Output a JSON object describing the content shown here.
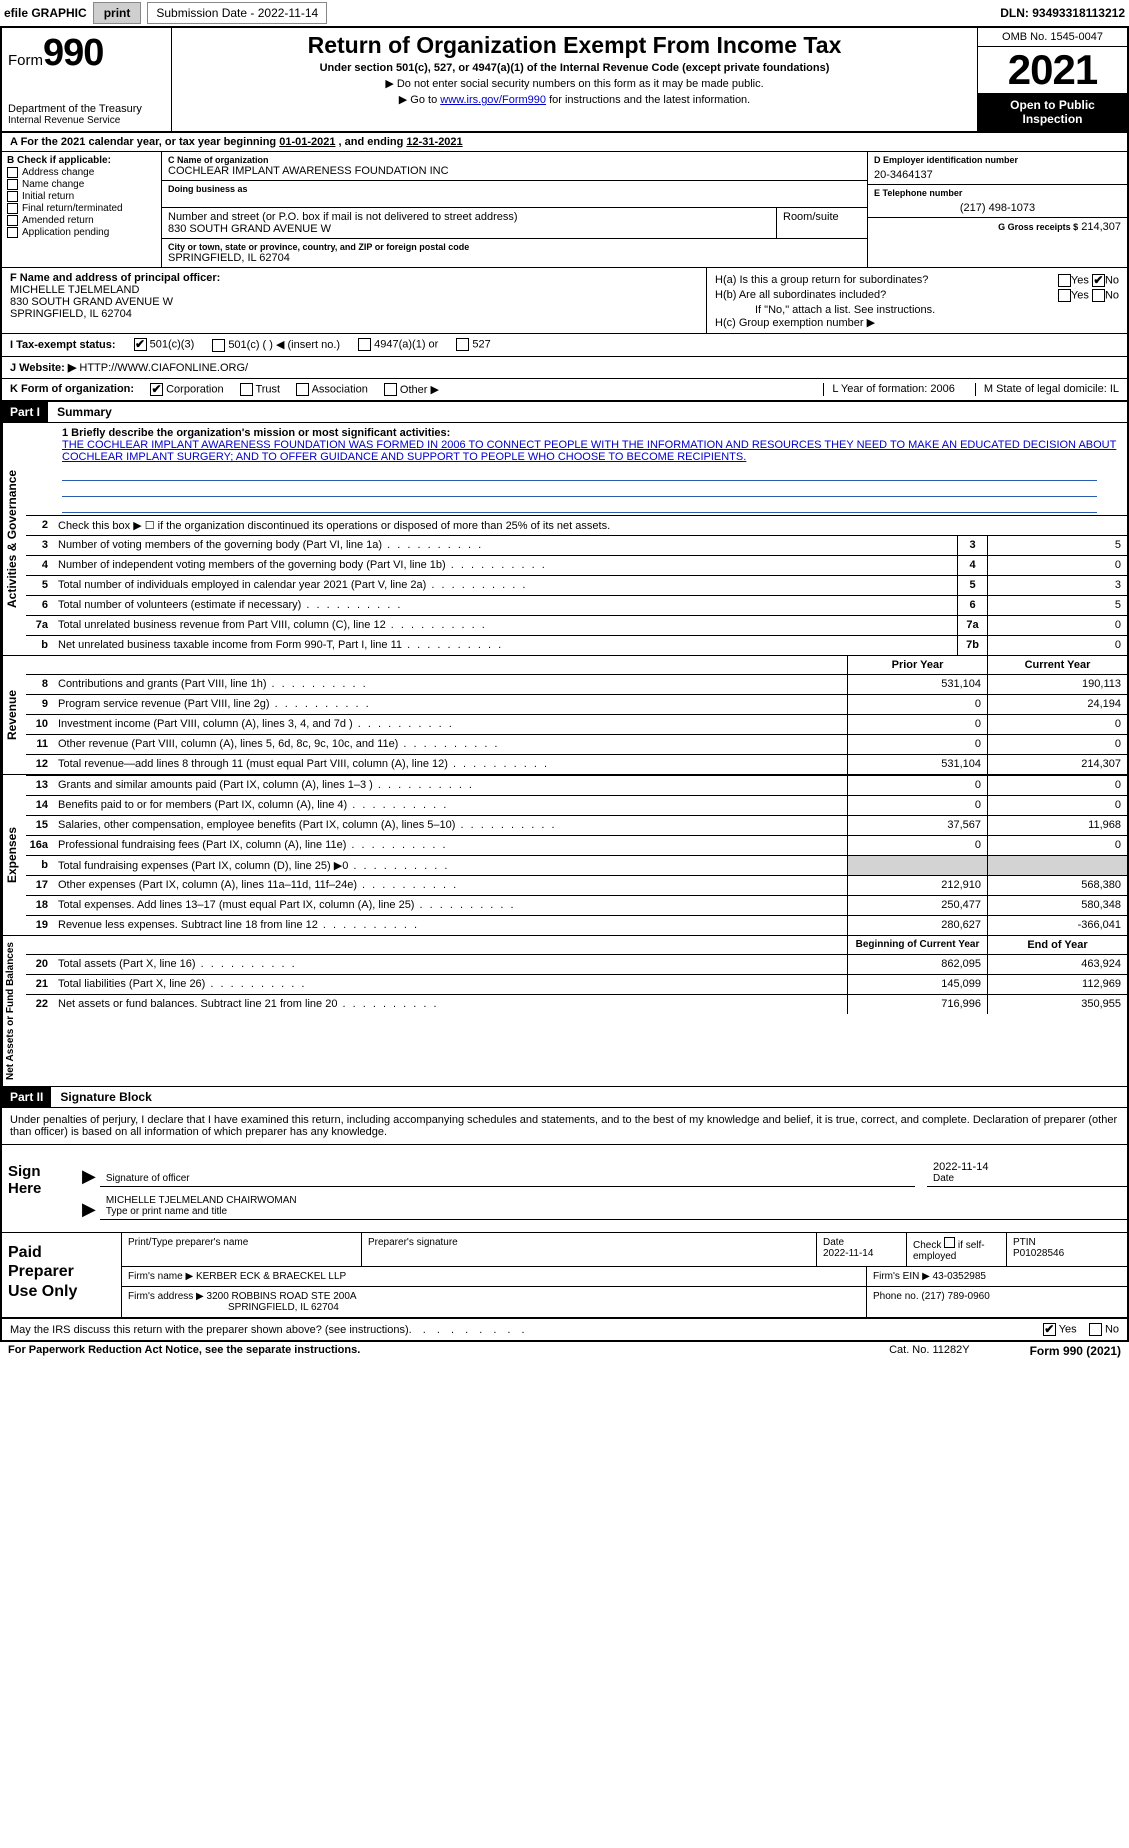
{
  "topbar": {
    "efile": "efile GRAPHIC",
    "print": "print",
    "submission": "Submission Date - 2022-11-14",
    "dln": "DLN: 93493318113212"
  },
  "header": {
    "form_prefix": "Form",
    "form_number": "990",
    "dept1": "Department of the Treasury",
    "dept2": "Internal Revenue Service",
    "title": "Return of Organization Exempt From Income Tax",
    "subtitle": "Under section 501(c), 527, or 4947(a)(1) of the Internal Revenue Code (except private foundations)",
    "note1": "▶ Do not enter social security numbers on this form as it may be made public.",
    "note2_pre": "▶ Go to ",
    "note2_link": "www.irs.gov/Form990",
    "note2_post": " for instructions and the latest information.",
    "omb": "OMB No. 1545-0047",
    "year": "2021",
    "open1": "Open to Public",
    "open2": "Inspection"
  },
  "period": {
    "label_a": "A For the 2021 calendar year, or tax year beginning ",
    "begin": "01-01-2021",
    "mid": " , and ending ",
    "end": "12-31-2021"
  },
  "B": {
    "label": "B Check if applicable:",
    "opts": [
      "Address change",
      "Name change",
      "Initial return",
      "Final return/terminated",
      "Amended return",
      "Application pending"
    ]
  },
  "C": {
    "name_label": "C Name of organization",
    "name": "COCHLEAR IMPLANT AWARENESS FOUNDATION INC",
    "dba_label": "Doing business as",
    "street_label": "Number and street (or P.O. box if mail is not delivered to street address)",
    "room_label": "Room/suite",
    "street": "830 SOUTH GRAND AVENUE W",
    "city_label": "City or town, state or province, country, and ZIP or foreign postal code",
    "city": "SPRINGFIELD, IL  62704"
  },
  "D": {
    "label": "D Employer identification number",
    "value": "20-3464137"
  },
  "E": {
    "label": "E Telephone number",
    "value": "(217) 498-1073"
  },
  "G": {
    "label": "G Gross receipts $",
    "value": "214,307"
  },
  "F": {
    "label": "F Name and address of principal officer:",
    "name": "MICHELLE TJELMELAND",
    "street": "830 SOUTH GRAND AVENUE W",
    "city": "SPRINGFIELD, IL  62704"
  },
  "H": {
    "a": "H(a)  Is this a group return for subordinates?",
    "b": "H(b)  Are all subordinates included?",
    "b_note": "If \"No,\" attach a list. See instructions.",
    "c": "H(c)  Group exemption number ▶",
    "yes": "Yes",
    "no": "No"
  },
  "I": {
    "label": "I   Tax-exempt status:",
    "o1": "501(c)(3)",
    "o2": "501(c) (   ) ◀ (insert no.)",
    "o3": "4947(a)(1) or",
    "o4": "527"
  },
  "J": {
    "label": "J   Website: ▶",
    "value": "HTTP://WWW.CIAFONLINE.ORG/"
  },
  "K": {
    "label": "K Form of organization:",
    "o1": "Corporation",
    "o2": "Trust",
    "o3": "Association",
    "o4": "Other ▶",
    "L": "L Year of formation: 2006",
    "M": "M State of legal domicile: IL"
  },
  "partI": {
    "tag": "Part I",
    "title": "Summary"
  },
  "mission": {
    "q": "1  Briefly describe the organization's mission or most significant activities:",
    "text": "THE COCHLEAR IMPLANT AWARENESS FOUNDATION WAS FORMED IN 2006 TO CONNECT PEOPLE WITH THE INFORMATION AND RESOURCES THEY NEED TO MAKE AN EDUCATED DECISION ABOUT COCHLEAR IMPLANT SURGERY; AND TO OFFER GUIDANCE AND SUPPORT TO PEOPLE WHO CHOOSE TO BECOME RECIPIENTS."
  },
  "gov": {
    "r2": "Check this box ▶ ☐  if the organization discontinued its operations or disposed of more than 25% of its net assets.",
    "rows": [
      {
        "n": "3",
        "l": "Number of voting members of the governing body (Part VI, line 1a)",
        "box": "3",
        "v": "5"
      },
      {
        "n": "4",
        "l": "Number of independent voting members of the governing body (Part VI, line 1b)",
        "box": "4",
        "v": "0"
      },
      {
        "n": "5",
        "l": "Total number of individuals employed in calendar year 2021 (Part V, line 2a)",
        "box": "5",
        "v": "3"
      },
      {
        "n": "6",
        "l": "Total number of volunteers (estimate if necessary)",
        "box": "6",
        "v": "5"
      },
      {
        "n": "7a",
        "l": "Total unrelated business revenue from Part VIII, column (C), line 12",
        "box": "7a",
        "v": "0"
      },
      {
        "n": "b",
        "l": "Net unrelated business taxable income from Form 990-T, Part I, line 11",
        "box": "7b",
        "v": "0"
      }
    ]
  },
  "colhdr": {
    "prior": "Prior Year",
    "current": "Current Year"
  },
  "rev": [
    {
      "n": "8",
      "l": "Contributions and grants (Part VIII, line 1h)",
      "p": "531,104",
      "c": "190,113"
    },
    {
      "n": "9",
      "l": "Program service revenue (Part VIII, line 2g)",
      "p": "0",
      "c": "24,194"
    },
    {
      "n": "10",
      "l": "Investment income (Part VIII, column (A), lines 3, 4, and 7d )",
      "p": "0",
      "c": "0"
    },
    {
      "n": "11",
      "l": "Other revenue (Part VIII, column (A), lines 5, 6d, 8c, 9c, 10c, and 11e)",
      "p": "0",
      "c": "0"
    },
    {
      "n": "12",
      "l": "Total revenue—add lines 8 through 11 (must equal Part VIII, column (A), line 12)",
      "p": "531,104",
      "c": "214,307"
    }
  ],
  "exp": [
    {
      "n": "13",
      "l": "Grants and similar amounts paid (Part IX, column (A), lines 1–3 )",
      "p": "0",
      "c": "0"
    },
    {
      "n": "14",
      "l": "Benefits paid to or for members (Part IX, column (A), line 4)",
      "p": "0",
      "c": "0"
    },
    {
      "n": "15",
      "l": "Salaries, other compensation, employee benefits (Part IX, column (A), lines 5–10)",
      "p": "37,567",
      "c": "11,968"
    },
    {
      "n": "16a",
      "l": "Professional fundraising fees (Part IX, column (A), line 11e)",
      "p": "0",
      "c": "0"
    },
    {
      "n": "b",
      "l": "Total fundraising expenses (Part IX, column (D), line 25) ▶0",
      "p": "",
      "c": "",
      "shade": true
    },
    {
      "n": "17",
      "l": "Other expenses (Part IX, column (A), lines 11a–11d, 11f–24e)",
      "p": "212,910",
      "c": "568,380"
    },
    {
      "n": "18",
      "l": "Total expenses. Add lines 13–17 (must equal Part IX, column (A), line 25)",
      "p": "250,477",
      "c": "580,348"
    },
    {
      "n": "19",
      "l": "Revenue less expenses. Subtract line 18 from line 12",
      "p": "280,627",
      "c": "-366,041"
    }
  ],
  "nethdr": {
    "b": "Beginning of Current Year",
    "e": "End of Year"
  },
  "net": [
    {
      "n": "20",
      "l": "Total assets (Part X, line 16)",
      "p": "862,095",
      "c": "463,924"
    },
    {
      "n": "21",
      "l": "Total liabilities (Part X, line 26)",
      "p": "145,099",
      "c": "112,969"
    },
    {
      "n": "22",
      "l": "Net assets or fund balances. Subtract line 21 from line 20",
      "p": "716,996",
      "c": "350,955"
    }
  ],
  "partII": {
    "tag": "Part II",
    "title": "Signature Block"
  },
  "sig": {
    "intro": "Under penalties of perjury, I declare that I have examined this return, including accompanying schedules and statements, and to the best of my knowledge and belief, it is true, correct, and complete. Declaration of preparer (other than officer) is based on all information of which preparer has any knowledge.",
    "sign": "Sign",
    "here": "Here",
    "sig_of": "Signature of officer",
    "date": "2022-11-14",
    "date_l": "Date",
    "name": "MICHELLE TJELMELAND CHAIRWOMAN",
    "name_l": "Type or print name and title"
  },
  "prep": {
    "paid": "Paid",
    "preparer": "Preparer",
    "use": "Use Only",
    "h1": "Print/Type preparer's name",
    "h2": "Preparer's signature",
    "h3": "Date",
    "h3v": "2022-11-14",
    "h4a": "Check",
    "h4b": "if self-employed",
    "h5": "PTIN",
    "h5v": "P01028546",
    "firm_l": "Firm's name    ▶",
    "firm": "KERBER ECK & BRAECKEL LLP",
    "ein_l": "Firm's EIN ▶",
    "ein": "43-0352985",
    "addr_l": "Firm's address ▶",
    "addr1": "3200 ROBBINS ROAD STE 200A",
    "addr2": "SPRINGFIELD, IL  62704",
    "phone_l": "Phone no.",
    "phone": "(217) 789-0960"
  },
  "footer": {
    "q": "May the IRS discuss this return with the preparer shown above? (see instructions)",
    "yes": "Yes",
    "no": "No",
    "pra": "For Paperwork Reduction Act Notice, see the separate instructions.",
    "cat": "Cat. No. 11282Y",
    "form": "Form 990 (2021)"
  },
  "labels": {
    "gov": "Activities & Governance",
    "rev": "Revenue",
    "exp": "Expenses",
    "net": "Net Assets or Fund Balances"
  }
}
